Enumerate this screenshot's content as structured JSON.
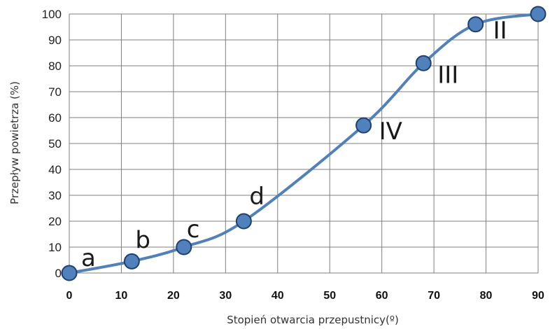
{
  "chart_data": {
    "type": "line",
    "xlabel": "Stopień otwarcia przepustnicy(º)",
    "ylabel": "Przepływ powietrza (%)",
    "xlim": [
      0,
      90
    ],
    "ylim": [
      0,
      100
    ],
    "x_ticks": [
      "0",
      "10",
      "20",
      "30",
      "40",
      "50",
      "60",
      "70",
      "80",
      "90"
    ],
    "y_ticks": [
      "0",
      "10",
      "20",
      "30",
      "40",
      "50",
      "60",
      "70",
      "80",
      "90",
      "100"
    ],
    "grid": true,
    "smooth": true,
    "series": [
      {
        "x": [
          0,
          12,
          22,
          33.5,
          56.5,
          68,
          78,
          90
        ],
        "y": [
          0,
          4.5,
          10,
          20,
          57,
          81,
          96,
          100
        ]
      }
    ],
    "point_labels": [
      {
        "text": "a",
        "x": 0,
        "y": 0
      },
      {
        "text": "b",
        "x": 12,
        "y": 4.5
      },
      {
        "text": "c",
        "x": 22,
        "y": 10
      },
      {
        "text": "d",
        "x": 33.5,
        "y": 20
      },
      {
        "text": "IV",
        "x": 56.5,
        "y": 57
      },
      {
        "text": "III",
        "x": 68,
        "y": 81
      },
      {
        "text": "II",
        "x": 78,
        "y": 96
      }
    ],
    "colors": {
      "line": "#4f81bd",
      "marker_fill": "#4f81bd",
      "marker_stroke": "#1f3f6e",
      "grid": "#7f7f7f"
    }
  }
}
